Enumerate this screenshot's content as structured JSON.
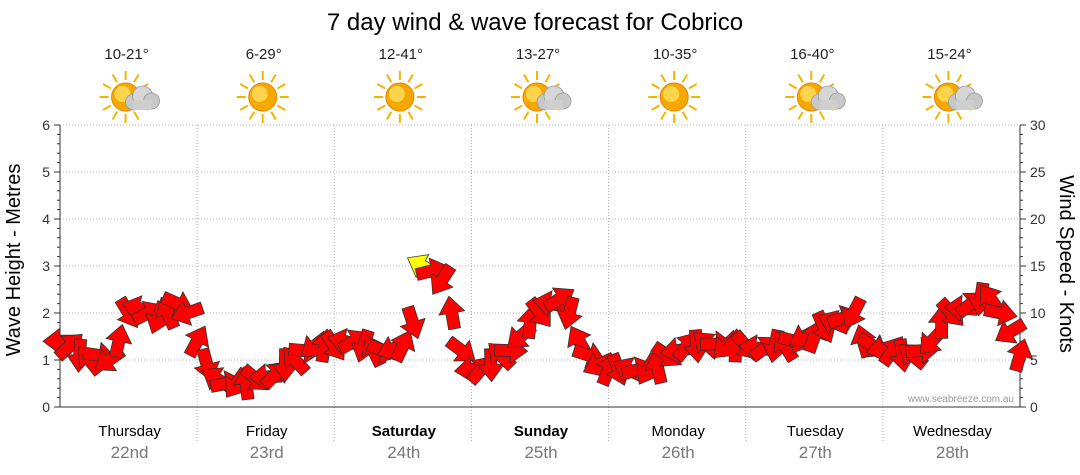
{
  "chart_data": {
    "type": "line",
    "title": "7 day wind & wave forecast for Cobrico",
    "ylabel_left": "Wave Height - Metres",
    "ylabel_right": "Wind Speed - Knots",
    "ylim_left": [
      0,
      6
    ],
    "ylim_right": [
      0,
      30
    ],
    "yticks_left": [
      "0",
      "1",
      "2",
      "3",
      "4",
      "5",
      "6"
    ],
    "yticks_right": [
      "0",
      "5",
      "10",
      "15",
      "20",
      "25",
      "30"
    ],
    "grid": true,
    "days": [
      {
        "day": "Thursday",
        "date": "22nd",
        "bold": false,
        "temp": "10-21°",
        "weather_icon": "partly-cloudy-icon"
      },
      {
        "day": "Friday",
        "date": "23rd",
        "bold": false,
        "temp": "6-29°",
        "weather_icon": "sunny-icon"
      },
      {
        "day": "Saturday",
        "date": "24th",
        "bold": true,
        "temp": "12-41°",
        "weather_icon": "sunny-icon"
      },
      {
        "day": "Sunday",
        "date": "25th",
        "bold": true,
        "temp": "13-27°",
        "weather_icon": "partly-cloudy-icon"
      },
      {
        "day": "Monday",
        "date": "26th",
        "bold": false,
        "temp": "10-35°",
        "weather_icon": "sunny-icon"
      },
      {
        "day": "Tuesday",
        "date": "27th",
        "bold": false,
        "temp": "16-40°",
        "weather_icon": "partly-cloudy-icon"
      },
      {
        "day": "Wednesday",
        "date": "28th",
        "bold": false,
        "temp": "15-24°",
        "weather_icon": "partly-cloudy-icon"
      }
    ],
    "series": [
      {
        "name": "Wind Speed - Knots",
        "axis": "right",
        "unit_per_point": "3 hours",
        "values": [
          7,
          6.5,
          5.5,
          5,
          5.5,
          5,
          7,
          10,
          10.5,
          10,
          9.5,
          10,
          11,
          10,
          7,
          4.5,
          3,
          2.5,
          2.5,
          2.5,
          3,
          3.2,
          3.5,
          4.5,
          5,
          6,
          6.5,
          6.5,
          6.5,
          7,
          7,
          6.5,
          6,
          6,
          6.2,
          6.5,
          9,
          15,
          14.5,
          13.5,
          10,
          6,
          4,
          4,
          4.5,
          5.5,
          6,
          7.5,
          9,
          10,
          11,
          11.5,
          10,
          7,
          5.5,
          4.5,
          4,
          4,
          4,
          4,
          4,
          4.2,
          5.5,
          6,
          6.5,
          6.5,
          6.7,
          6.7,
          6.5,
          6.5,
          6.5,
          6.3,
          6.3,
          6.5,
          6.5,
          7,
          7.5,
          7.5,
          8.5,
          9,
          9.5,
          10,
          7,
          6.5,
          6.2,
          6,
          5.5,
          5.5,
          6,
          7,
          9,
          10,
          10.5,
          11,
          11.5,
          11.5,
          10,
          8,
          5.5
        ],
        "colors": {
          "under_15_knots": "#ff0000",
          "15_knots_and_over": "#ffff00"
        }
      }
    ],
    "watermark": "www.seabreeze.com.au",
    "colors": {
      "arrow_stroke": "#333333",
      "grid": "#999999"
    }
  }
}
